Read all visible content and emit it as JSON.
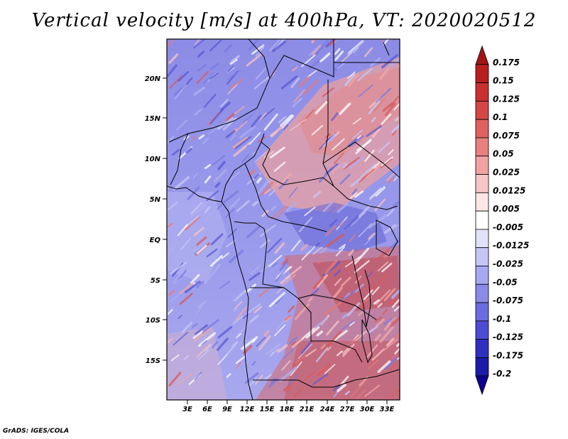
{
  "title": "Vertical velocity [m/s] at 400hPa, VT: 2020020512",
  "credit": "GrADS: IGES/COLA",
  "map": {
    "variable": "Vertical velocity",
    "units": "m/s",
    "level": "400hPa",
    "valid_time": "2020020512",
    "lat_labels": [
      "20N",
      "15N",
      "10N",
      "5N",
      "EQ",
      "5S",
      "10S",
      "15S"
    ],
    "lon_labels": [
      "3E",
      "6E",
      "9E",
      "12E",
      "15E",
      "18E",
      "21E",
      "24E",
      "27E",
      "30E",
      "33E"
    ]
  },
  "colorbar": {
    "levels": [
      "0.175",
      "0.15",
      "0.125",
      "0.1",
      "0.075",
      "0.05",
      "0.025",
      "0.0125",
      "0.005",
      "-0.005",
      "-0.0125",
      "-0.025",
      "-0.05",
      "-0.075",
      "-0.1",
      "-0.125",
      "-0.175",
      "-0.2"
    ],
    "colors": [
      "#a51414",
      "#b91e1e",
      "#c93030",
      "#d64646",
      "#e06060",
      "#e98080",
      "#f2a2a2",
      "#f8c6c6",
      "#fde6e6",
      "#ffffff",
      "#e2e2fa",
      "#c6c6f6",
      "#a8a8f0",
      "#8a8ae8",
      "#6c6ce0",
      "#4c4cd4",
      "#3030c0",
      "#1c1ca8",
      "#100090"
    ]
  }
}
